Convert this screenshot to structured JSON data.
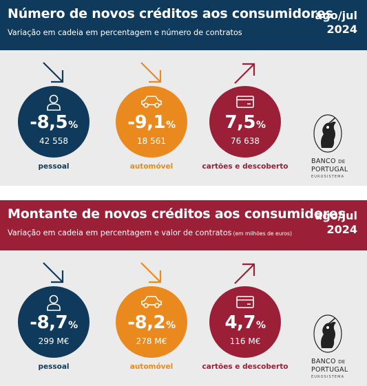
{
  "colors": {
    "navy": "#0f3a5c",
    "orange": "#ea8a1e",
    "red": "#9b1f37",
    "background": "#ebebeb"
  },
  "panels": [
    {
      "title": "Número de novos créditos aos consumidores",
      "subtitle": "Variação em cadeia em percentagem e número de contratos",
      "subtitle_note": "",
      "period_line1": "ago/jul",
      "period_line2": "2024",
      "items": [
        {
          "value": "-8,5",
          "unit": "%",
          "count": "42 558",
          "label": "pessoal",
          "icon": "person-icon",
          "trend": "down"
        },
        {
          "value": "-9,1",
          "unit": "%",
          "count": "18 561",
          "label": "automóvel",
          "icon": "car-icon",
          "trend": "down"
        },
        {
          "value": "7,5",
          "unit": "%",
          "count": "76 638",
          "label": "cartões e descoberto",
          "icon": "card-icon",
          "trend": "up"
        }
      ]
    },
    {
      "title": "Montante de novos créditos aos consumidores",
      "subtitle": "Variação em cadeia em percentagem e valor de contratos",
      "subtitle_note": "(em milhões de euros)",
      "period_line1": "ago/jul",
      "period_line2": "2024",
      "items": [
        {
          "value": "-8,7",
          "unit": "%",
          "count": "299 M€",
          "label": "pessoal",
          "icon": "person-icon",
          "trend": "down"
        },
        {
          "value": "-8,2",
          "unit": "%",
          "count": "278 M€",
          "label": "automóvel",
          "icon": "car-icon",
          "trend": "down"
        },
        {
          "value": "4,7",
          "unit": "%",
          "count": "116 M€",
          "label": "cartões e descoberto",
          "icon": "card-icon",
          "trend": "up"
        }
      ]
    }
  ],
  "logo": {
    "line1_a": "BANCO",
    "line1_b": "DE",
    "line2": "PORTUGAL",
    "line3": "EUROSISTEMA"
  }
}
